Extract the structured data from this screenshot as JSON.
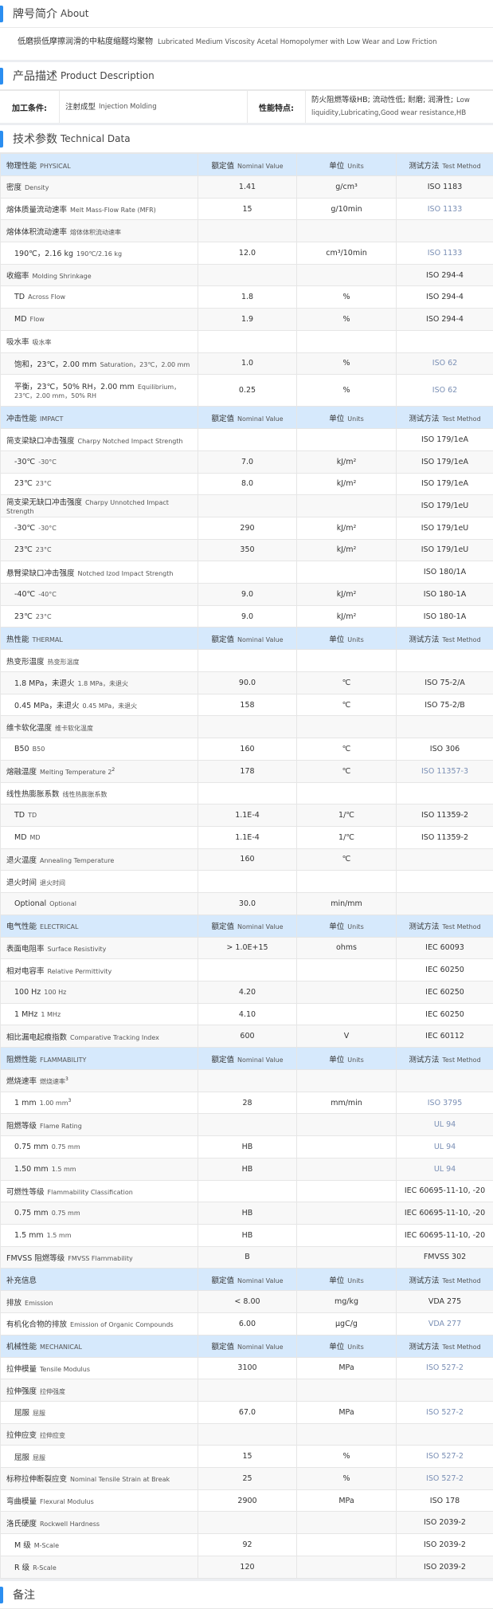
{
  "about": {
    "title_cn": "牌号简介",
    "title_en": "About",
    "text_cn": "低磨损低摩擦润滑的中粘度缩醛均聚物",
    "text_en": "Lubricated Medium Viscosity Acetal Homopolymer with Low Wear and Low Friction"
  },
  "description": {
    "title_cn": "产品描述",
    "title_en": "Product Description",
    "process_label": "加工条件:",
    "process_cn": "注射成型",
    "process_en": "Injection Molding",
    "feature_label": "性能特点:",
    "feature_cn": "防火阻燃等级HB; 流动性低; 耐磨; 润滑性;",
    "feature_en": "Low liquidity,Lubricating,Good wear resistance,HB"
  },
  "technical": {
    "title_cn": "技术参数",
    "title_en": "Technical Data",
    "columns": {
      "value_cn": "额定值",
      "value_en": "Nominal Value",
      "unit_cn": "单位",
      "unit_en": "Units",
      "method_cn": "测试方法",
      "method_en": "Test Method"
    },
    "rows": [
      {
        "header": true,
        "cn": "物理性能",
        "en": "PHYSICAL"
      },
      {
        "cn": "密度",
        "en": "Density",
        "value": "1.41",
        "unit": "g/cm³",
        "method": "ISO 1183"
      },
      {
        "cn": "熔体质量流动速率",
        "en": "Melt Mass-Flow Rate (MFR)",
        "value": "15",
        "unit": "g/10min",
        "method": "ISO 1133",
        "link": true
      },
      {
        "cn": "熔体体积流动速率",
        "en": "熔体体积流动速率"
      },
      {
        "cn": "190℃，2.16 kg",
        "en": "190℃/2.16 kg",
        "indent": true,
        "value": "12.0",
        "unit": "cm³/10min",
        "method": "ISO 1133",
        "link": true
      },
      {
        "cn": "收缩率",
        "en": "Molding Shrinkage",
        "method": "ISO 294-4"
      },
      {
        "cn": "TD",
        "en": "Across Flow",
        "indent": true,
        "value": "1.8",
        "unit": "%",
        "method": "ISO 294-4"
      },
      {
        "cn": "MD",
        "en": "Flow",
        "indent": true,
        "value": "1.9",
        "unit": "%",
        "method": "ISO 294-4"
      },
      {
        "cn": "吸水率",
        "en": "吸水率"
      },
      {
        "cn": "饱和，23℃，2.00 mm",
        "en": "Saturation，23℃，2.00 mm",
        "indent": true,
        "value": "1.0",
        "unit": "%",
        "method": "ISO 62",
        "link": true
      },
      {
        "cn": "平衡，23℃，50% RH，2.00 mm",
        "en": "Equilibrium，23℃，2.00 mm，50% RH",
        "indent": true,
        "tall": true,
        "value": "0.25",
        "unit": "%",
        "method": "ISO 62",
        "link": true
      },
      {
        "header": true,
        "cn": "冲击性能",
        "en": "IMPACT"
      },
      {
        "cn": "简支梁缺口冲击强度",
        "en": "Charpy Notched Impact Strength",
        "method": "ISO 179/1eA"
      },
      {
        "cn": "-30℃",
        "en": "-30°C",
        "indent": true,
        "value": "7.0",
        "unit": "kJ/m²",
        "method": "ISO 179/1eA"
      },
      {
        "cn": "23℃",
        "en": "23°C",
        "indent": true,
        "value": "8.0",
        "unit": "kJ/m²",
        "method": "ISO 179/1eA"
      },
      {
        "cn": "简支梁无缺口冲击强度",
        "en": "Charpy Unnotched Impact Strength",
        "method": "ISO 179/1eU"
      },
      {
        "cn": "-30℃",
        "en": "-30°C",
        "indent": true,
        "value": "290",
        "unit": "kJ/m²",
        "method": "ISO 179/1eU"
      },
      {
        "cn": "23℃",
        "en": "23°C",
        "indent": true,
        "value": "350",
        "unit": "kJ/m²",
        "method": "ISO 179/1eU"
      },
      {
        "cn": "悬臂梁缺口冲击强度",
        "en": "Notched Izod Impact Strength",
        "method": "ISO 180/1A"
      },
      {
        "cn": "-40℃",
        "en": "-40°C",
        "indent": true,
        "value": "9.0",
        "unit": "kJ/m²",
        "method": "ISO 180-1A"
      },
      {
        "cn": "23℃",
        "en": "23°C",
        "indent": true,
        "value": "9.0",
        "unit": "kJ/m²",
        "method": "ISO 180-1A"
      },
      {
        "header": true,
        "cn": "热性能",
        "en": "THERMAL"
      },
      {
        "cn": "热变形温度",
        "en": "热变形温度"
      },
      {
        "cn": "1.8 MPa，未退火",
        "en": "1.8 MPa，未退火",
        "indent": true,
        "value": "90.0",
        "unit": "℃",
        "method": "ISO 75-2/A"
      },
      {
        "cn": "0.45 MPa，未退火",
        "en": "0.45 MPa，未退火",
        "indent": true,
        "value": "158",
        "unit": "℃",
        "method": "ISO 75-2/B"
      },
      {
        "cn": "维卡软化温度",
        "en": "维卡软化温度"
      },
      {
        "cn": "B50",
        "en": "B50",
        "indent": true,
        "value": "160",
        "unit": "℃",
        "method": "ISO 306"
      },
      {
        "cn": "熔融温度",
        "en": "Melting Temperature  2",
        "sup": "2",
        "value": "178",
        "unit": "℃",
        "method": "ISO 11357-3",
        "link": true
      },
      {
        "cn": "线性热膨胀系数",
        "en": "线性热膨胀系数"
      },
      {
        "cn": "TD",
        "en": "TD",
        "indent": true,
        "value": "1.1E-4",
        "unit": "1/℃",
        "method": "ISO 11359-2"
      },
      {
        "cn": "MD",
        "en": "MD",
        "indent": true,
        "value": "1.1E-4",
        "unit": "1/℃",
        "method": "ISO 11359-2"
      },
      {
        "cn": "退火温度",
        "en": "Annealing Temperature",
        "value": "160",
        "unit": "℃"
      },
      {
        "cn": "退火时间",
        "en": "退火时间"
      },
      {
        "cn": "Optional",
        "en": "Optional",
        "indent": true,
        "value": "30.0",
        "unit": "min/mm"
      },
      {
        "header": true,
        "cn": "电气性能",
        "en": "ELECTRICAL"
      },
      {
        "cn": "表面电阻率",
        "en": "Surface Resistivity",
        "value": "> 1.0E+15",
        "unit": "ohms",
        "method": "IEC 60093"
      },
      {
        "cn": "相对电容率",
        "en": "Relative Permittivity",
        "method": "IEC 60250"
      },
      {
        "cn": "100 Hz",
        "en": "100 Hz",
        "indent": true,
        "value": "4.20",
        "method": "IEC 60250"
      },
      {
        "cn": "1 MHz",
        "en": "1 MHz",
        "indent": true,
        "value": "4.10",
        "method": "IEC 60250"
      },
      {
        "cn": "相比漏电起痕指数",
        "en": "Comparative Tracking Index",
        "value": "600",
        "unit": "V",
        "method": "IEC 60112"
      },
      {
        "header": true,
        "cn": "阻燃性能",
        "en": "FLAMMABILITY"
      },
      {
        "cn": "燃烧速率",
        "en": "燃烧速率",
        "sup": "3"
      },
      {
        "cn": "1 mm",
        "en": "1.00 mm",
        "sup": "3",
        "indent": true,
        "value": "28",
        "unit": "mm/min",
        "method": "ISO 3795",
        "link": true
      },
      {
        "cn": "阻燃等级",
        "en": "Flame Rating",
        "method": "UL 94",
        "link": true
      },
      {
        "cn": "0.75 mm",
        "en": "0.75 mm",
        "indent": true,
        "value": "HB",
        "method": "UL 94",
        "link": true
      },
      {
        "cn": "1.50 mm",
        "en": "1.5 mm",
        "indent": true,
        "value": "HB",
        "method": "UL 94",
        "link": true
      },
      {
        "cn": "可燃性等级",
        "en": "Flammability Classification",
        "method": "IEC 60695-11-10, -20"
      },
      {
        "cn": "0.75 mm",
        "en": "0.75 mm",
        "indent": true,
        "value": "HB",
        "method": "IEC 60695-11-10, -20"
      },
      {
        "cn": "1.5 mm",
        "en": "1.5 mm",
        "indent": true,
        "value": "HB",
        "method": "IEC 60695-11-10, -20"
      },
      {
        "cn": "FMVSS 阻燃等级",
        "en": "FMVSS Flammability",
        "value": "B",
        "method": "FMVSS 302"
      },
      {
        "header": true,
        "cn": "补充信息",
        "en": ""
      },
      {
        "cn": "排放",
        "en": "Emission",
        "value": "< 8.00",
        "unit": "mg/kg",
        "method": "VDA 275"
      },
      {
        "cn": "有机化合物的排放",
        "en": "Emission of Organic Compounds",
        "value": "6.00",
        "unit": "µgC/g",
        "method": "VDA 277",
        "link": true
      },
      {
        "header": true,
        "cn": "机械性能",
        "en": "MECHANICAL"
      },
      {
        "cn": "拉伸模量",
        "en": "Tensile Modulus",
        "value": "3100",
        "unit": "MPa",
        "method": "ISO 527-2",
        "link": true
      },
      {
        "cn": "拉伸强度",
        "en": "拉伸强度"
      },
      {
        "cn": "屈服",
        "en": "屈服",
        "indent": true,
        "value": "67.0",
        "unit": "MPa",
        "method": "ISO 527-2",
        "link": true
      },
      {
        "cn": "拉伸应变",
        "en": "拉伸应变"
      },
      {
        "cn": "屈服",
        "en": "屈服",
        "indent": true,
        "value": "15",
        "unit": "%",
        "method": "ISO 527-2",
        "link": true
      },
      {
        "cn": "标称拉伸断裂应变",
        "en": "Nominal Tensile Strain at Break",
        "value": "25",
        "unit": "%",
        "method": "ISO 527-2",
        "link": true
      },
      {
        "cn": "弯曲模量",
        "en": "Flexural Modulus",
        "value": "2900",
        "unit": "MPa",
        "method": "ISO 178"
      },
      {
        "cn": "洛氏硬度",
        "en": "Rockwell Hardness",
        "method": "ISO 2039-2"
      },
      {
        "cn": "M 级",
        "en": "M-Scale",
        "indent": true,
        "value": "92",
        "method": "ISO 2039-2"
      },
      {
        "cn": "R 级",
        "en": "R-Scale",
        "indent": true,
        "value": "120",
        "method": "ISO 2039-2"
      }
    ]
  },
  "notes": {
    "title_cn": "备注"
  },
  "colors": {
    "accent": "#2b8ef0",
    "header_bg": "#d6e9fc",
    "link": "#7a8fb5"
  }
}
